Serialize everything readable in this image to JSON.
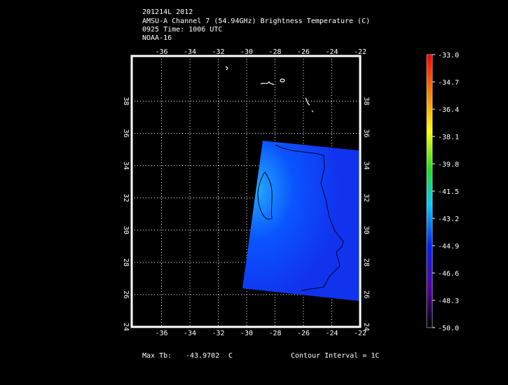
{
  "header": {
    "lines": [
      "201214L 2012",
      "AMSU-A Channel 7 (54.94GHz) Brightness Temperature (C)",
      "0925 Time: 1006 UTC",
      "NOAA-16"
    ]
  },
  "map": {
    "lonlim": [
      -38.1,
      -22
    ],
    "latlim": [
      24,
      40.8
    ],
    "lon_ticks": [
      -36,
      -34,
      -32,
      -30,
      -28,
      -26,
      -24,
      -22
    ],
    "lat_ticks": [
      24,
      26,
      28,
      30,
      32,
      34,
      36,
      38
    ],
    "grid": true
  },
  "colorbar": {
    "lim": [
      -50,
      -33
    ],
    "ticks": [
      {
        "value": -33,
        "label": "-33.0"
      },
      {
        "value": -34.7,
        "label": "-34.7"
      },
      {
        "value": -36.4,
        "label": "-36.4"
      },
      {
        "value": -38.1,
        "label": "-38.1"
      },
      {
        "value": -39.8,
        "label": "-39.8"
      },
      {
        "value": -41.5,
        "label": "-41.5"
      },
      {
        "value": -43.2,
        "label": "-43.2"
      },
      {
        "value": -44.9,
        "label": "-44.9"
      },
      {
        "value": -46.6,
        "label": "-46.6"
      },
      {
        "value": -48.3,
        "label": "-48.3"
      },
      {
        "value": -50,
        "label": "-50.0"
      }
    ]
  },
  "footer": {
    "max_label": "Max Tb:",
    "max_value": "-43.9702",
    "unit": "C",
    "contour": "Contour Interval = 1C"
  }
}
